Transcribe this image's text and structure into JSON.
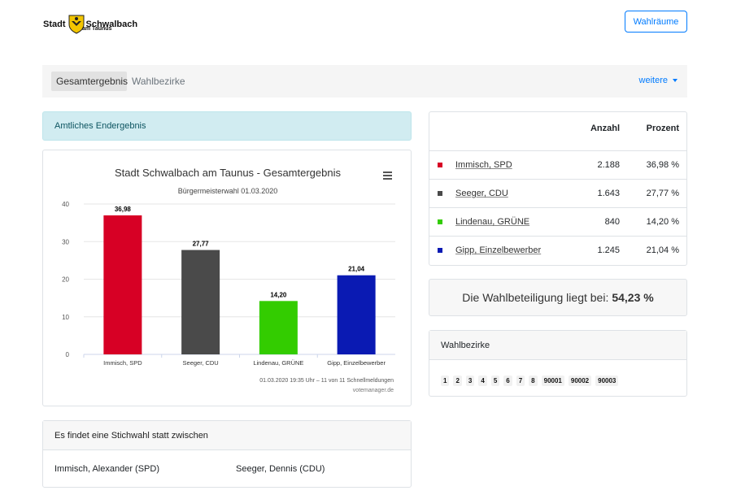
{
  "header": {
    "logo_left": "Stadt",
    "logo_right": "Schwalbach",
    "logo_sub": "am Taunus",
    "wahlraeume_button": "Wahlräume"
  },
  "nav": {
    "tabs": [
      {
        "label": "Gesamtergebnis",
        "active": true
      },
      {
        "label": "Wahlbezirke",
        "active": false
      }
    ],
    "more_label": "weitere"
  },
  "alert": "Amtliches Endergebnis",
  "chart_data": {
    "type": "bar",
    "title": "Stadt Schwalbach am Taunus - Gesamtergebnis",
    "subtitle": "Bürgermeisterwahl 01.03.2020",
    "categories": [
      "Immisch, SPD",
      "Seeger, CDU",
      "Lindenau, GRÜNE",
      "Gipp, Einzelbewerber"
    ],
    "values": [
      36.98,
      27.77,
      14.2,
      21.04
    ],
    "value_labels": [
      "36,98",
      "27,77",
      "14,20",
      "21,04"
    ],
    "colors": [
      "#d70025",
      "#4a4a4a",
      "#33cc00",
      "#0a1ab3"
    ],
    "ylim": [
      0,
      40
    ],
    "yticks": [
      0,
      10,
      20,
      30,
      40
    ],
    "grid": true,
    "footer": "01.03.2020 19:35 Uhr – 11 von 11 Schnellmeldungen",
    "credit": "votemanager.de"
  },
  "stichwahl": {
    "heading": "Es findet eine Stichwahl statt zwischen",
    "candidates": [
      "Immisch, Alexander (SPD)",
      "Seeger, Dennis (CDU)"
    ]
  },
  "results_table": {
    "headers": {
      "anzahl": "Anzahl",
      "prozent": "Prozent"
    },
    "rows": [
      {
        "name": "Immisch, SPD",
        "anzahl": "2.188",
        "prozent": "36,98 %",
        "color": "#d70025"
      },
      {
        "name": "Seeger, CDU",
        "anzahl": "1.643",
        "prozent": "27,77 %",
        "color": "#4a4a4a"
      },
      {
        "name": "Lindenau, GRÜNE",
        "anzahl": "840",
        "prozent": "14,20 %",
        "color": "#33cc00"
      },
      {
        "name": "Gipp, Einzelbewerber",
        "anzahl": "1.245",
        "prozent": "21,04 %",
        "color": "#0a1ab3"
      }
    ]
  },
  "turnout": {
    "text": "Die Wahlbeteiligung liegt bei:",
    "value": "54,23 %"
  },
  "wahlbezirke": {
    "heading": "Wahlbezirke",
    "items": [
      "1",
      "2",
      "3",
      "4",
      "5",
      "6",
      "7",
      "8",
      "90001",
      "90002",
      "90003"
    ]
  }
}
